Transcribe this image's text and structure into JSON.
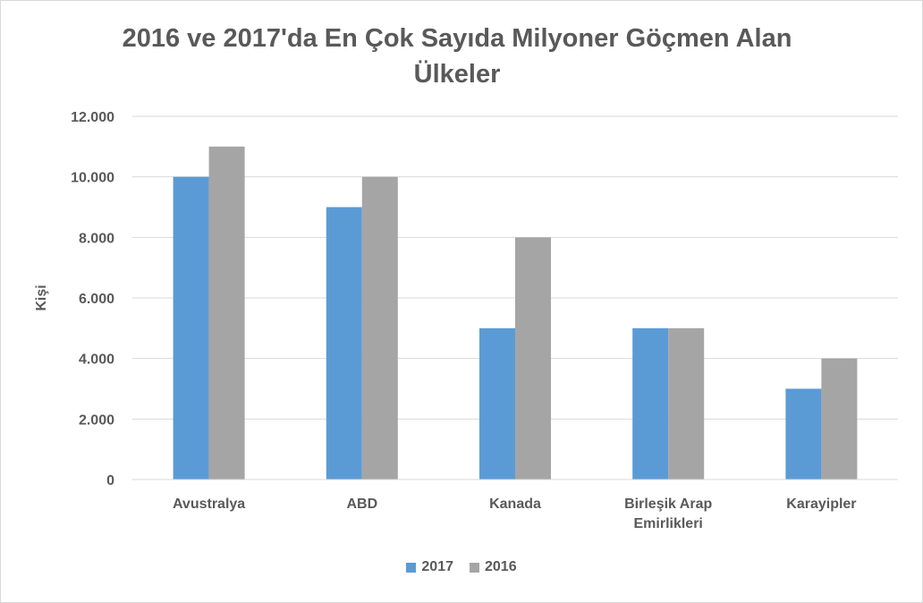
{
  "chart_data": {
    "type": "bar",
    "title": "2016 ve 2017'da En Çok Sayıda Milyoner Göçmen Alan Ülkeler",
    "ylabel": "Kişi",
    "xlabel": "",
    "categories": [
      "Avustralya",
      "ABD",
      "Kanada",
      "Birleşik Arap Emirlikleri",
      "Karayipler"
    ],
    "series": [
      {
        "name": "2017",
        "color": "#5b9bd5",
        "values": [
          10000,
          9000,
          5000,
          5000,
          3000
        ]
      },
      {
        "name": "2016",
        "color": "#a5a5a5",
        "values": [
          11000,
          10000,
          8000,
          5000,
          4000
        ]
      }
    ],
    "ylim": [
      0,
      12000
    ],
    "yticks": [
      0,
      2000,
      4000,
      6000,
      8000,
      10000,
      12000
    ],
    "ytick_labels": [
      "0",
      "2.000",
      "4.000",
      "6.000",
      "8.000",
      "10.000",
      "12.000"
    ],
    "grid": true,
    "legend_position": "bottom"
  }
}
